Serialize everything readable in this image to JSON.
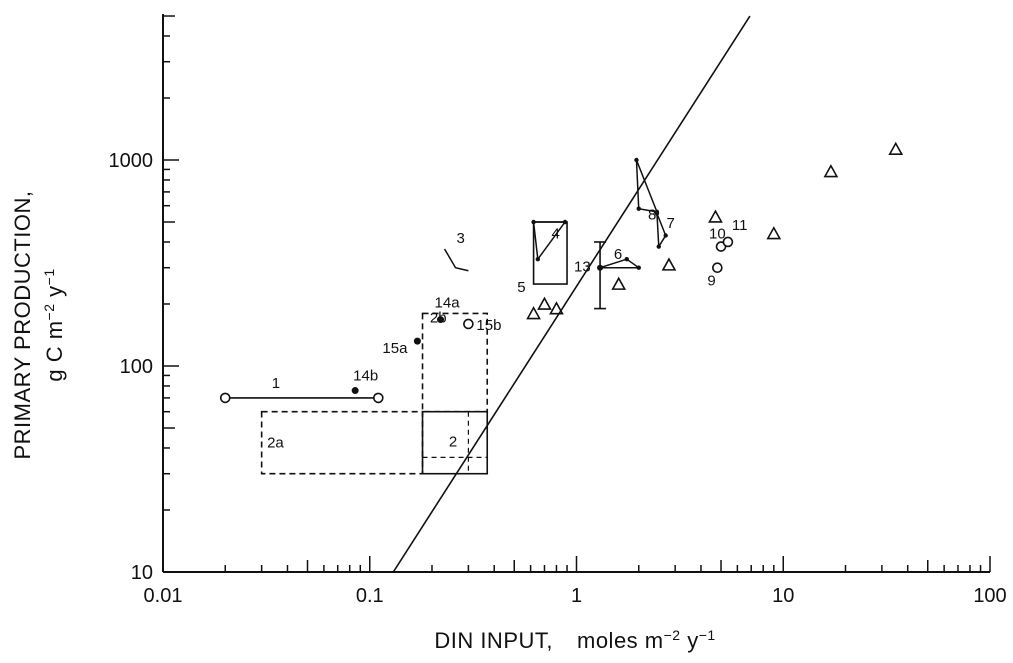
{
  "chart_data": {
    "type": "scatter",
    "x_scale": "log",
    "y_scale": "log",
    "xlim": [
      0.01,
      100
    ],
    "ylim": [
      10,
      5000
    ],
    "x_ticks": [
      "0.01",
      "0.1",
      "1",
      "10",
      "100"
    ],
    "y_ticks": [
      "10",
      "100",
      "1000"
    ],
    "xlabel": "DIN INPUT,",
    "xlabel_units": "moles m",
    "xlabel_exp1": "−2",
    "xlabel_mid": " y",
    "xlabel_exp2": "−1",
    "ylabel_line1": "PRIMARY PRODUCTION,",
    "ylabel_line2": "g C m",
    "ylabel_exp1": "−2",
    "ylabel_mid": " y",
    "ylabel_exp2": "−1",
    "reference_line": [
      [
        0.13,
        10
      ],
      [
        6.9,
        5000
      ]
    ],
    "ranges": [
      {
        "label": "1",
        "x": [
          0.02,
          0.11
        ],
        "y": 70
      },
      {
        "label": "13",
        "x": 1.3,
        "y": [
          190,
          400
        ]
      }
    ],
    "boxes": [
      {
        "label": "2",
        "style": "solid",
        "x": [
          0.18,
          0.37
        ],
        "y": [
          30,
          60
        ]
      },
      {
        "label": "2a",
        "style": "dashed",
        "x": [
          0.03,
          0.18
        ],
        "y": [
          30,
          60
        ]
      },
      {
        "label": "2b",
        "style": "dashed",
        "x": [
          0.18,
          0.37
        ],
        "y": [
          60,
          180
        ]
      },
      {
        "label": "5",
        "style": "solid",
        "x": [
          0.62,
          0.9
        ],
        "y": [
          250,
          500
        ]
      }
    ],
    "triangles": [
      {
        "label": "4",
        "points": [
          [
            0.62,
            500
          ],
          [
            0.65,
            330
          ],
          [
            0.88,
            500
          ]
        ]
      },
      {
        "label": "6",
        "points": [
          [
            1.3,
            300
          ],
          [
            1.75,
            330
          ],
          [
            2.0,
            300
          ]
        ]
      },
      {
        "label": "7",
        "points": [
          [
            2.45,
            550
          ],
          [
            2.5,
            380
          ],
          [
            2.7,
            430
          ]
        ]
      },
      {
        "label": "8",
        "points": [
          [
            1.95,
            1000
          ],
          [
            2.0,
            580
          ],
          [
            2.45,
            560
          ]
        ]
      }
    ],
    "segments": [
      {
        "label": "3",
        "points": [
          [
            0.23,
            370
          ],
          [
            0.26,
            300
          ],
          [
            0.3,
            290
          ]
        ]
      }
    ],
    "filled_points": [
      {
        "label": "14a",
        "x": 0.22,
        "y": 168
      },
      {
        "label": "14b",
        "x": 0.085,
        "y": 76
      },
      {
        "label": "15a",
        "x": 0.17,
        "y": 132
      }
    ],
    "open_points": [
      {
        "label": "15b",
        "x": 0.3,
        "y": 160
      },
      {
        "label": "9",
        "x": 4.8,
        "y": 300
      },
      {
        "label": "10",
        "x": 5.0,
        "y": 380
      },
      {
        "label": "11",
        "x": 5.4,
        "y": 400
      }
    ],
    "triangle_markers": [
      {
        "x": 0.62,
        "y": 180
      },
      {
        "x": 0.7,
        "y": 200
      },
      {
        "x": 0.8,
        "y": 190
      },
      {
        "x": 1.6,
        "y": 250
      },
      {
        "x": 2.8,
        "y": 310
      },
      {
        "x": 4.7,
        "y": 530
      },
      {
        "x": 9.0,
        "y": 440
      },
      {
        "x": 17,
        "y": 880
      },
      {
        "x": 35,
        "y": 1130
      }
    ]
  }
}
